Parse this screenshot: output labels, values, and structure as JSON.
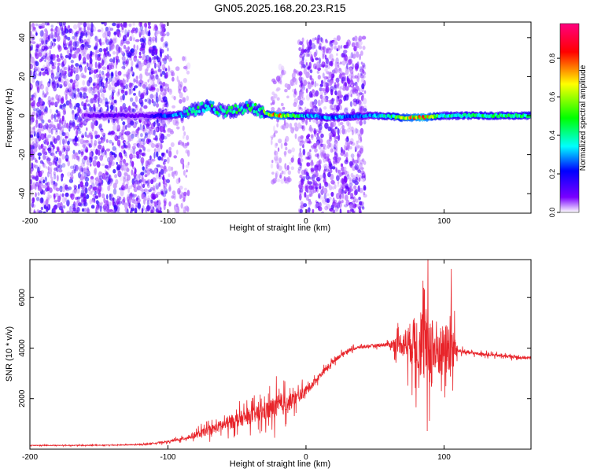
{
  "title": "GN05.2025.168.20.23.R15",
  "colors": {
    "snr_line": "#e8242a",
    "axis": "#000000",
    "background": "#ffffff"
  },
  "chart_data": [
    {
      "type": "heatmap",
      "xlabel": "Height of straight line (km)",
      "ylabel": "Frequency (Hz)",
      "xlim": [
        -200,
        163
      ],
      "ylim": [
        -50,
        48
      ],
      "x_ticks": [
        "-200",
        "-100",
        "0",
        "100"
      ],
      "y_ticks": [
        "-40",
        "-20",
        "0",
        "20",
        "40"
      ],
      "y_tick_values": [
        -40,
        -20,
        0,
        20,
        40
      ],
      "x_tick_values": [
        -200,
        -100,
        0,
        100
      ],
      "colorbar": {
        "label": "Normalized spectral amplitude",
        "range": [
          0,
          0.98
        ],
        "ticks": [
          "0.0",
          "0.2",
          "0.4",
          "0.6",
          "0.8"
        ],
        "tick_values": [
          0,
          0.2,
          0.4,
          0.6,
          0.8
        ],
        "colormap": [
          "#ffffff",
          "#7a00ff",
          "#0000ff",
          "#00ffff",
          "#00ff00",
          "#ffff00",
          "#ff0000",
          "#ff007f"
        ]
      },
      "noise_regions": [
        {
          "x": [
            -200,
            -100
          ],
          "y": [
            -50,
            48
          ],
          "amplitude": 0.15
        },
        {
          "x": [
            -100,
            -85
          ],
          "y": [
            -50,
            30
          ],
          "amplitude": 0.05
        },
        {
          "x": [
            -25,
            -5
          ],
          "y": [
            -35,
            25
          ],
          "amplitude": 0.05
        },
        {
          "x": [
            -5,
            43
          ],
          "y": [
            -50,
            40
          ],
          "amplitude": 0.12
        }
      ],
      "ridge": [
        {
          "x": -160,
          "f": 0.0,
          "amp": 0.15
        },
        {
          "x": -140,
          "f": 0.0,
          "amp": 0.2
        },
        {
          "x": -120,
          "f": 0.0,
          "amp": 0.15
        },
        {
          "x": -100,
          "f": 0.0,
          "amp": 0.35
        },
        {
          "x": -90,
          "f": 1.0,
          "amp": 0.45
        },
        {
          "x": -80,
          "f": 3.0,
          "amp": 0.55
        },
        {
          "x": -70,
          "f": 5.0,
          "amp": 0.55
        },
        {
          "x": -60,
          "f": 2.0,
          "amp": 0.5
        },
        {
          "x": -50,
          "f": 3.0,
          "amp": 0.55
        },
        {
          "x": -40,
          "f": 5.0,
          "amp": 0.55
        },
        {
          "x": -30,
          "f": 1.0,
          "amp": 0.6
        },
        {
          "x": -20,
          "f": 0.0,
          "amp": 0.85
        },
        {
          "x": -10,
          "f": 0.0,
          "amp": 0.6
        },
        {
          "x": 0,
          "f": 0.0,
          "amp": 0.4
        },
        {
          "x": 20,
          "f": -1.0,
          "amp": 0.4
        },
        {
          "x": 43,
          "f": 0.0,
          "amp": 0.35
        },
        {
          "x": 55,
          "f": 0.0,
          "amp": 0.45
        },
        {
          "x": 70,
          "f": -1.0,
          "amp": 0.7
        },
        {
          "x": 85,
          "f": -1.0,
          "amp": 0.85
        },
        {
          "x": 100,
          "f": 0.0,
          "amp": 0.5
        },
        {
          "x": 130,
          "f": 0.0,
          "amp": 0.55
        },
        {
          "x": 163,
          "f": 0.0,
          "amp": 0.55
        }
      ]
    },
    {
      "type": "line",
      "xlabel": "Height of straight line (km)",
      "ylabel": "SNR (10 * v/v)",
      "xlim": [
        -200,
        163
      ],
      "ylim": [
        0,
        7500
      ],
      "x_ticks": [
        "-200",
        "-100",
        "0",
        "100"
      ],
      "x_tick_values": [
        -200,
        -100,
        0,
        100
      ],
      "y_ticks": [
        "2000",
        "4000",
        "6000"
      ],
      "y_tick_values": [
        2000,
        4000,
        6000
      ],
      "series": [
        {
          "color": "#e8242a",
          "x": [
            -200,
            -180,
            -160,
            -140,
            -120,
            -100,
            -90,
            -80,
            -70,
            -60,
            -50,
            -40,
            -30,
            -20,
            -10,
            0,
            10,
            20,
            30,
            40,
            50,
            60,
            70,
            80,
            85,
            90,
            95,
            100,
            105,
            110,
            120,
            140,
            163
          ],
          "y": [
            150,
            150,
            150,
            160,
            180,
            300,
            400,
            550,
            750,
            950,
            1150,
            1300,
            1500,
            1700,
            1900,
            2300,
            2900,
            3500,
            3900,
            4050,
            4100,
            4150,
            4200,
            4200,
            4100,
            4000,
            3900,
            3950,
            4000,
            3900,
            3800,
            3700,
            3600
          ],
          "noise": [
            20,
            20,
            25,
            25,
            30,
            60,
            100,
            200,
            300,
            400,
            450,
            500,
            600,
            800,
            500,
            300,
            200,
            150,
            120,
            100,
            100,
            150,
            800,
            1800,
            2500,
            2800,
            2000,
            1500,
            2200,
            150,
            100,
            100,
            100
          ]
        }
      ]
    }
  ]
}
